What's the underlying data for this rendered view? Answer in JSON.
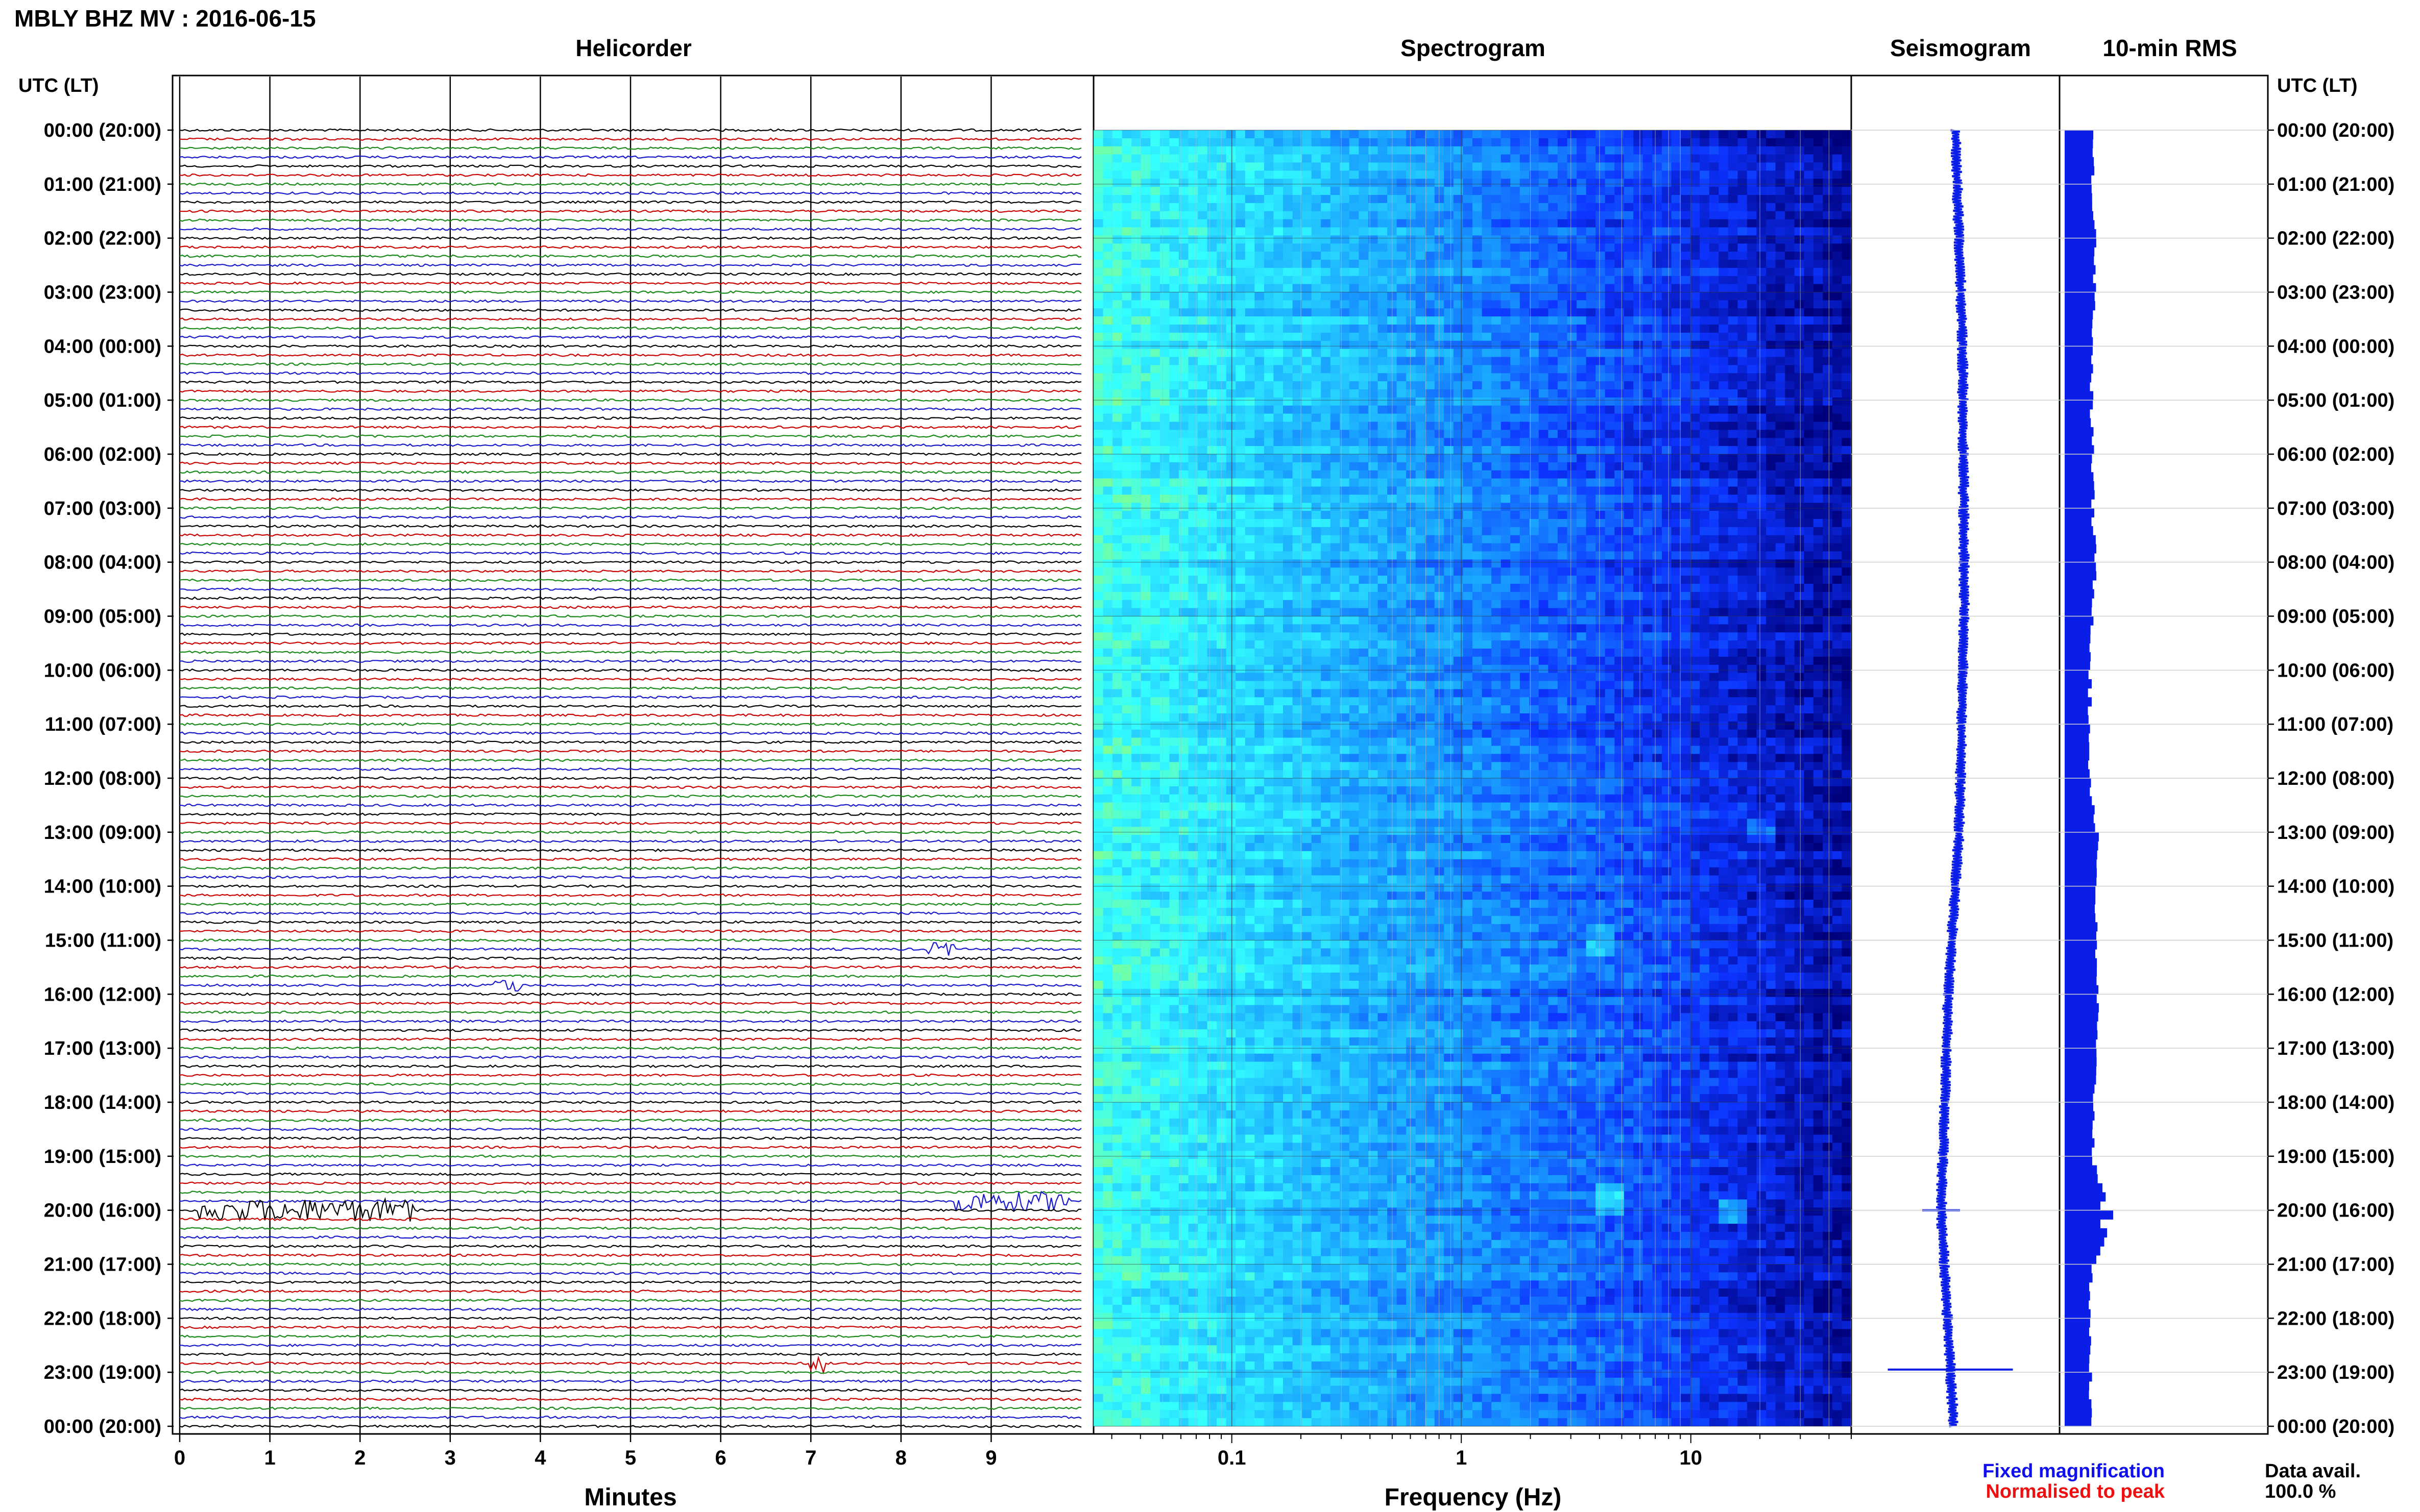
{
  "header": {
    "station_title": "MBLY BHZ MV : 2016-06-15",
    "utc_label_left": "UTC (LT)",
    "utc_label_right": "UTC (LT)"
  },
  "panels": {
    "helicorder_title": "Helicorder",
    "spectrogram_title": "Spectrogram",
    "seismogram_title": "Seismogram",
    "rms_title": "10-min RMS"
  },
  "axes": {
    "minutes_label": "Minutes",
    "frequency_label": "Frequency (Hz)"
  },
  "footer": {
    "fixed_magnification": "Fixed magnification",
    "normalised_to_peak": "Normalised to peak",
    "data_avail_label": "Data avail.",
    "data_avail_value": "100.0 %"
  },
  "colors": {
    "trace_cycle": [
      "#000000",
      "#cc0000",
      "#1a8a1a",
      "#1a1acc"
    ],
    "blue_fill": "#0a1ee8",
    "fixed_magnification": "#1010ee",
    "normalised_to_peak": "#ee1010"
  },
  "chart_data": [
    {
      "type": "line",
      "name": "helicorder",
      "title": "Helicorder",
      "xlabel": "Minutes",
      "ylabel": "UTC (LT)",
      "x_ticks": [
        0,
        1,
        2,
        3,
        4,
        5,
        6,
        7,
        8,
        9
      ],
      "xlim": [
        0,
        10
      ],
      "time_labels": [
        "00:00 (20:00)",
        "01:00 (21:00)",
        "02:00 (22:00)",
        "03:00 (23:00)",
        "04:00 (00:00)",
        "05:00 (01:00)",
        "06:00 (02:00)",
        "07:00 (03:00)",
        "08:00 (04:00)",
        "09:00 (05:00)",
        "10:00 (06:00)",
        "11:00 (07:00)",
        "12:00 (08:00)",
        "13:00 (09:00)",
        "14:00 (10:00)",
        "15:00 (11:00)",
        "16:00 (12:00)",
        "17:00 (13:00)",
        "18:00 (14:00)",
        "19:00 (15:00)",
        "20:00 (16:00)",
        "21:00 (17:00)",
        "22:00 (18:00)",
        "23:00 (19:00)",
        "00:00 (20:00)"
      ],
      "lines_per_hour": 6,
      "events": [
        {
          "hour": 20.0,
          "minute_start": 0.2,
          "minute_end": 2.6,
          "amplitude": 1.0
        },
        {
          "hour": 19.83,
          "minute_start": 8.6,
          "minute_end": 9.9,
          "amplitude": 0.8
        },
        {
          "hour": 22.83,
          "minute_start": 7.0,
          "minute_end": 7.15,
          "amplitude": 1.0
        },
        {
          "hour": 15.83,
          "minute_start": 3.5,
          "minute_end": 3.8,
          "amplitude": 0.5
        },
        {
          "hour": 15.17,
          "minute_start": 8.3,
          "minute_end": 8.6,
          "amplitude": 0.4
        }
      ]
    },
    {
      "type": "heatmap",
      "name": "spectrogram",
      "title": "Spectrogram",
      "xlabel": "Frequency (Hz)",
      "x_scale": "log",
      "xlim": [
        0.025,
        50
      ],
      "x_tick_labels": [
        "0.1",
        "1",
        "10"
      ],
      "x_tick_values": [
        0.1,
        1,
        10
      ],
      "colormap": [
        "#00007a",
        "#0d33ff",
        "#19a3ff",
        "#33ffff",
        "#a8ff5a"
      ],
      "hot_spots": [
        {
          "hour": 20.0,
          "freq": 15,
          "strength": 0.9
        },
        {
          "hour": 19.8,
          "freq": 4.3,
          "strength": 0.8
        },
        {
          "hour": 15.0,
          "freq": 4.0,
          "strength": 0.6
        },
        {
          "hour": 13.0,
          "freq": 20,
          "strength": 0.5
        }
      ]
    },
    {
      "type": "line",
      "name": "seismogram",
      "title": "Seismogram",
      "drift": [
        [
          0,
          0.0
        ],
        [
          4,
          0.2
        ],
        [
          9,
          0.25
        ],
        [
          13,
          0.1
        ],
        [
          16,
          -0.2
        ],
        [
          20,
          -0.4
        ],
        [
          24,
          -0.05
        ]
      ],
      "events": [
        {
          "hour": 20.0,
          "amplitude": 0.6
        },
        {
          "hour": 22.95,
          "amplitude": 2.5
        }
      ]
    },
    {
      "type": "bar",
      "name": "rms_10min",
      "title": "10-min RMS",
      "orientation": "horizontal",
      "bins_per_hour": 6,
      "hourly_values": [
        0.55,
        0.55,
        0.62,
        0.58,
        0.55,
        0.52,
        0.55,
        0.55,
        0.6,
        0.55,
        0.5,
        0.48,
        0.5,
        0.65,
        0.62,
        0.6,
        0.65,
        0.6,
        0.58,
        0.55,
        0.95,
        0.52,
        0.5,
        0.5,
        0.5
      ],
      "peak_hour": 20.0,
      "peak_value": 0.95
    }
  ]
}
